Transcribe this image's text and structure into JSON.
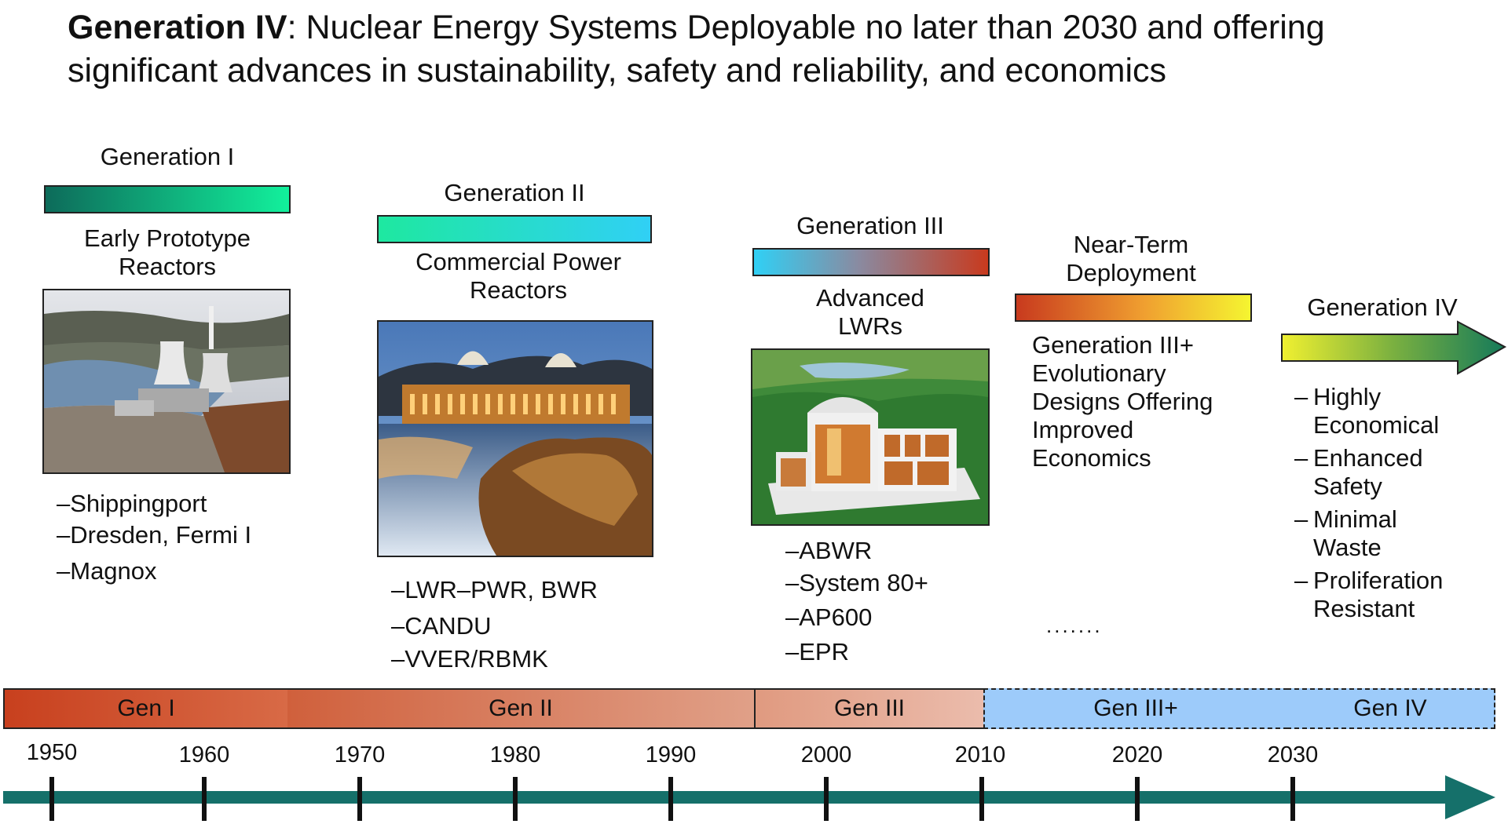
{
  "title": {
    "bold": "Generation IV",
    "rest": ": Nuclear Energy Systems Deployable no later than 2030 and offering significant advances in sustainability, safety and reliability, and economics"
  },
  "generations": {
    "gen1": {
      "label": "Generation I",
      "desc": [
        "Early Prototype",
        "Reactors"
      ],
      "examples": [
        "–Shippingport",
        "–Dresden, Fermi I",
        "–Magnox"
      ]
    },
    "gen2": {
      "label": "Generation II",
      "desc": [
        "Commercial Power",
        "Reactors"
      ],
      "examples": [
        "–LWR–PWR, BWR",
        "–CANDU",
        "–VVER/RBMK"
      ]
    },
    "gen3": {
      "label": "Generation III",
      "desc": [
        "Advanced",
        "LWRs"
      ],
      "examples": [
        "–ABWR",
        "–System 80+",
        "–AP600",
        "–EPR"
      ]
    },
    "gen3plus": {
      "label": [
        "Near-Term",
        "Deployment"
      ],
      "desc": [
        "Generation III+",
        "Evolutionary",
        "Designs Offering",
        "Improved",
        "Economics"
      ],
      "ellipsis": "......."
    },
    "gen4": {
      "label": "Generation IV",
      "bullets": [
        [
          "Highly",
          "Economical"
        ],
        [
          "Enhanced",
          "Safety"
        ],
        [
          "Minimal",
          "Waste"
        ],
        [
          "Proliferation",
          "Resistant"
        ]
      ],
      "dash": "–"
    }
  },
  "timeline": {
    "eras": [
      "Gen I",
      "Gen II",
      "Gen III",
      "Gen III+",
      "Gen IV"
    ],
    "years": [
      "1950",
      "1960",
      "1970",
      "1980",
      "1990",
      "2000",
      "2010",
      "2020",
      "2030"
    ]
  },
  "colors": {
    "gen1_bar": [
      "#0d6b5a",
      "#12f09c"
    ],
    "gen2_bar": [
      "#1ee8a0",
      "#30d0f5"
    ],
    "gen3_bar": [
      "#30d0f5",
      "#c83a1e"
    ],
    "gen3plus_bar": [
      "#c83a1e",
      "#f5f530"
    ],
    "gen4_arrow": [
      "#f0f030",
      "#157a5a"
    ],
    "timeline_arrow": "#15706a",
    "future_box": "#9dcbfa"
  }
}
